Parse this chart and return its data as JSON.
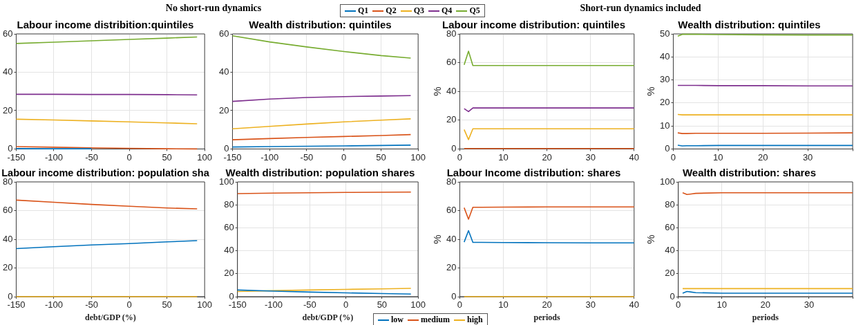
{
  "chart_data": [
    {
      "type": "line",
      "title": "Labour income distribition:quintiles",
      "annotations": [
        "No short-run dynamics"
      ],
      "x": [
        -150,
        -100,
        -50,
        0,
        50,
        90
      ],
      "xlim": [
        -150,
        100
      ],
      "xticks": [
        -150,
        -100,
        -50,
        0,
        50,
        100
      ],
      "ylim": [
        0,
        60
      ],
      "yticks": [
        0,
        20,
        40,
        60
      ],
      "grid": true,
      "series": [
        {
          "color": "#0072bd",
          "values": [
            0.2,
            0.1,
            0.1,
            null,
            null,
            null
          ]
        },
        {
          "color": "#d95319",
          "values": [
            1.2,
            0.9,
            0.6,
            0.3,
            0.1,
            0
          ]
        },
        {
          "color": "#edb120",
          "values": [
            15.5,
            15.1,
            14.6,
            14.1,
            13.6,
            13.1
          ]
        },
        {
          "color": "#7e2f8e",
          "values": [
            28.5,
            28.5,
            28.4,
            28.4,
            28.3,
            28.2
          ]
        },
        {
          "color": "#77ac30",
          "values": [
            55,
            55.7,
            56.4,
            57.1,
            57.8,
            58.4
          ]
        }
      ]
    },
    {
      "type": "line",
      "title": "Wealth distribution: quintiles",
      "x": [
        -150,
        -100,
        -50,
        0,
        50,
        90
      ],
      "xlim": [
        -150,
        100
      ],
      "xticks": [
        -150,
        -100,
        -50,
        0,
        50,
        100
      ],
      "ylim": [
        0,
        60
      ],
      "yticks": [
        0,
        20,
        40,
        60
      ],
      "grid": true,
      "legend": "top right",
      "series": [
        {
          "name": "Q1",
          "color": "#0072bd",
          "values": [
            1.0,
            1.2,
            1.4,
            1.6,
            1.8,
            2.0
          ]
        },
        {
          "name": "Q2",
          "color": "#d95319",
          "values": [
            4.8,
            5.4,
            6.0,
            6.5,
            7.0,
            7.5
          ]
        },
        {
          "name": "Q3",
          "color": "#edb120",
          "values": [
            10.5,
            11.8,
            13.0,
            14.1,
            15.0,
            15.7
          ]
        },
        {
          "name": "Q4",
          "color": "#7e2f8e",
          "values": [
            24.8,
            26.0,
            26.8,
            27.3,
            27.6,
            27.8
          ]
        },
        {
          "name": "Q5",
          "color": "#77ac30",
          "values": [
            59,
            55.8,
            53.2,
            50.8,
            48.7,
            47.4
          ]
        }
      ]
    },
    {
      "type": "line",
      "title": "Labour income distribution: quintiles",
      "annotations": [
        "Short-run dynamics included"
      ],
      "ylabel": "%",
      "x": [
        1,
        2,
        3,
        5,
        10,
        20,
        30,
        40
      ],
      "xlim": [
        0,
        40
      ],
      "xticks": [
        0,
        10,
        20,
        30,
        40
      ],
      "ylim": [
        0,
        80
      ],
      "yticks": [
        0,
        20,
        40,
        60,
        80
      ],
      "grid": true,
      "series": [
        {
          "color": "#0072bd",
          "values": [
            null,
            null,
            null,
            null,
            null,
            null,
            null,
            null
          ]
        },
        {
          "color": "#d95319",
          "values": [
            0.3,
            0.3,
            0.3,
            0.3,
            0.3,
            0.3,
            0.3,
            0.3
          ]
        },
        {
          "color": "#edb120",
          "values": [
            13.5,
            6.5,
            14,
            14,
            14,
            14,
            14,
            14
          ]
        },
        {
          "color": "#7e2f8e",
          "values": [
            28,
            26,
            28.5,
            28.5,
            28.5,
            28.5,
            28.5,
            28.5
          ]
        },
        {
          "color": "#77ac30",
          "values": [
            58.5,
            68,
            58,
            58,
            58,
            58,
            58,
            58
          ]
        }
      ]
    },
    {
      "type": "line",
      "title": "Wealth distribution: quintiles",
      "ylabel": "%",
      "x": [
        1,
        2,
        3,
        5,
        10,
        20,
        30,
        40
      ],
      "xlim": [
        0,
        40
      ],
      "xticks": [
        0,
        10,
        20,
        30,
        {
          "value": 40,
          "label": null
        }
      ],
      "ylim": [
        0,
        50
      ],
      "yticks": [
        0,
        10,
        20,
        30,
        40,
        50
      ],
      "grid": true,
      "series": [
        {
          "color": "#0072bd",
          "values": [
            1.6,
            1.3,
            1.4,
            1.4,
            1.5,
            1.5,
            1.5,
            1.5
          ]
        },
        {
          "color": "#d95319",
          "values": [
            7,
            6.7,
            6.7,
            6.8,
            6.8,
            6.8,
            6.9,
            7
          ]
        },
        {
          "color": "#edb120",
          "values": [
            15,
            14.8,
            14.8,
            14.8,
            14.8,
            14.8,
            14.8,
            14.8
          ]
        },
        {
          "color": "#7e2f8e",
          "values": [
            27.6,
            27.6,
            27.6,
            27.6,
            27.5,
            27.5,
            27.4,
            27.4
          ]
        },
        {
          "color": "#77ac30",
          "values": [
            49,
            49.8,
            49.8,
            49.8,
            49.7,
            49.6,
            49.5,
            49.5
          ]
        }
      ]
    },
    {
      "type": "line",
      "title": "Labour income distribution: population sha",
      "xlabel": "debt/GDP (%)",
      "x": [
        -150,
        -100,
        -50,
        0,
        50,
        90
      ],
      "xlim": [
        -150,
        100
      ],
      "xticks": [
        -150,
        -100,
        -50,
        0,
        50,
        100
      ],
      "ylim": [
        0,
        80
      ],
      "yticks": [
        0,
        20,
        40,
        60,
        80
      ],
      "grid": true,
      "series": [
        {
          "color": "#0072bd",
          "values": [
            33.5,
            34.8,
            36,
            37,
            38.2,
            39
          ]
        },
        {
          "color": "#d95319",
          "values": [
            67.3,
            65.8,
            64.3,
            63,
            61.8,
            61.2
          ]
        },
        {
          "color": "#edb120",
          "values": [
            0,
            0,
            0,
            0,
            0,
            0
          ]
        }
      ]
    },
    {
      "type": "line",
      "title": "Wealth distribution: population shares",
      "xlabel": "debt/GDP (%)",
      "x": [
        -150,
        -100,
        -50,
        0,
        50,
        90
      ],
      "xlim": [
        -150,
        100
      ],
      "xticks": [
        -150,
        -100,
        -50,
        0,
        50,
        100
      ],
      "ylim": [
        0,
        100
      ],
      "yticks": [
        0,
        20,
        40,
        60,
        80,
        100
      ],
      "grid": true,
      "legend": "bottom right",
      "series": [
        {
          "name": "low",
          "color": "#0072bd",
          "values": [
            5.8,
            4.8,
            4.0,
            3.3,
            2.7,
            2.3
          ]
        },
        {
          "name": "medium",
          "color": "#d95319",
          "values": [
            89.8,
            90.2,
            90.5,
            90.8,
            91.0,
            91.1
          ]
        },
        {
          "name": "high",
          "color": "#edb120",
          "values": [
            4.5,
            5.2,
            5.8,
            6.3,
            6.8,
            7.2
          ]
        }
      ]
    },
    {
      "type": "line",
      "title": "Labour Income distribution: shares",
      "xlabel": "periods",
      "ylabel": "%",
      "x": [
        1,
        2,
        3,
        5,
        10,
        20,
        30,
        40
      ],
      "xlim": [
        0,
        40
      ],
      "xticks": [
        0,
        10,
        20,
        30,
        40
      ],
      "ylim": [
        0,
        80
      ],
      "yticks": [
        0,
        20,
        40,
        60,
        80
      ],
      "grid": true,
      "series": [
        {
          "color": "#0072bd",
          "values": [
            38,
            46,
            37.8,
            37.8,
            37.7,
            37.6,
            37.5,
            37.5
          ]
        },
        {
          "color": "#d95319",
          "values": [
            62,
            54,
            62.3,
            62.3,
            62.4,
            62.5,
            62.5,
            62.5
          ]
        },
        {
          "color": "#edb120",
          "values": [
            0,
            0,
            0,
            0,
            0,
            0,
            0,
            0
          ]
        }
      ]
    },
    {
      "type": "line",
      "title": "Wealth distribution: shares",
      "xlabel": "periods",
      "ylabel": "%",
      "x": [
        1,
        2,
        3,
        4,
        10,
        20,
        30,
        40
      ],
      "xlim": [
        0,
        40
      ],
      "xticks": [
        0,
        10,
        20,
        30,
        {
          "value": 40,
          "label": null
        }
      ],
      "ylim": [
        0,
        100
      ],
      "yticks": [
        0,
        20,
        40,
        60,
        80,
        100
      ],
      "grid": true,
      "series": [
        {
          "color": "#0072bd",
          "values": [
            3,
            4.5,
            4,
            3.5,
            3,
            3,
            3,
            3
          ]
        },
        {
          "color": "#d95319",
          "values": [
            90.5,
            89,
            89.5,
            90,
            90.5,
            90.5,
            90.5,
            90.5
          ]
        },
        {
          "color": "#edb120",
          "values": [
            7,
            7,
            7,
            7,
            7,
            7,
            7,
            7
          ]
        }
      ]
    }
  ]
}
